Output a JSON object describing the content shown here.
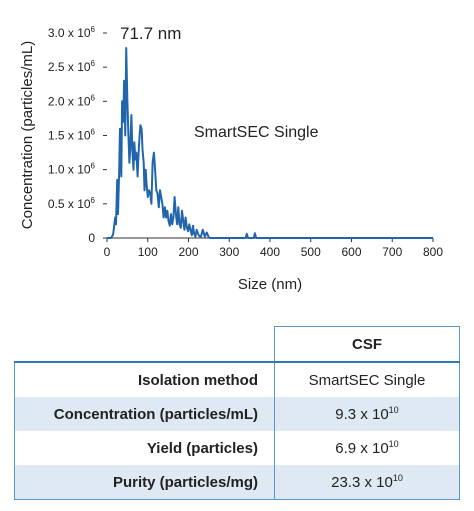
{
  "chart_data": {
    "type": "line",
    "annotation_peak": "71.7 nm",
    "annotation_series": "SmartSEC Single",
    "xlabel": "Size (nm)",
    "ylabel": "Concentration (particles/mL)",
    "xlim": [
      0,
      800
    ],
    "ylim": [
      0,
      3000000
    ],
    "xticks": [
      "0",
      "100",
      "200",
      "300",
      "400",
      "500",
      "600",
      "700",
      "800"
    ],
    "yticks": [
      {
        "value": 0,
        "base": "0",
        "exp": ""
      },
      {
        "value": 500000,
        "base": "0.5 x 10",
        "exp": "6"
      },
      {
        "value": 1000000,
        "base": "1.0 x 10",
        "exp": "6"
      },
      {
        "value": 1500000,
        "base": "1.5 x 10",
        "exp": "6"
      },
      {
        "value": 2000000,
        "base": "2.0 x 10",
        "exp": "6"
      },
      {
        "value": 2500000,
        "base": "2.5 x 10",
        "exp": "6"
      },
      {
        "value": 3000000,
        "base": "3.0 x 10",
        "exp": "6"
      }
    ],
    "line_color": "#2166ac",
    "grid": false,
    "x": [
      0,
      10,
      15,
      20,
      22,
      25,
      27,
      30,
      32,
      35,
      37,
      40,
      42,
      45,
      47,
      50,
      52,
      55,
      57,
      60,
      62,
      65,
      67,
      70,
      72,
      75,
      77,
      80,
      82,
      85,
      87,
      90,
      92,
      95,
      97,
      100,
      103,
      106,
      109,
      112,
      115,
      118,
      121,
      124,
      127,
      130,
      133,
      136,
      139,
      142,
      145,
      148,
      151,
      154,
      157,
      160,
      163,
      166,
      169,
      172,
      175,
      178,
      181,
      184,
      187,
      190,
      193,
      196,
      199,
      202,
      205,
      208,
      211,
      214,
      217,
      220,
      225,
      230,
      235,
      240,
      245,
      250,
      255,
      260,
      300,
      340,
      343,
      346,
      350,
      360,
      363,
      366,
      370,
      380,
      400,
      500,
      600,
      700,
      800
    ],
    "y": [
      0,
      0,
      50000,
      300000,
      200000,
      850000,
      350000,
      1000000,
      1600000,
      900000,
      2000000,
      1700000,
      2300000,
      1500000,
      2780000,
      2000000,
      1600000,
      1100000,
      1300000,
      1800000,
      1300000,
      1000000,
      1400000,
      1150000,
      1250000,
      900000,
      1200000,
      1500000,
      1650000,
      1600000,
      1300000,
      1100000,
      700000,
      1000000,
      800000,
      600000,
      700000,
      650000,
      500000,
      1100000,
      1250000,
      1000000,
      700000,
      650000,
      450000,
      700000,
      600000,
      500000,
      300000,
      450000,
      300000,
      400000,
      250000,
      180000,
      350000,
      200000,
      300000,
      600000,
      350000,
      200000,
      450000,
      200000,
      150000,
      400000,
      250000,
      120000,
      300000,
      150000,
      100000,
      200000,
      120000,
      40000,
      180000,
      60000,
      20000,
      120000,
      40000,
      10000,
      120000,
      20000,
      80000,
      5000,
      0,
      0,
      0,
      0,
      60000,
      0,
      0,
      0,
      70000,
      0,
      0,
      0,
      0,
      0,
      0,
      0,
      0
    ]
  },
  "table": {
    "header": "CSF",
    "rows": [
      {
        "label": "Isolation method",
        "value": "SmartSEC Single",
        "exp": ""
      },
      {
        "label": "Concentration (particles/mL)",
        "value": "9.3 x 10",
        "exp": "10"
      },
      {
        "label": "Yield (particles)",
        "value": "6.9 x 10",
        "exp": "10"
      },
      {
        "label": "Purity (particles/mg)",
        "value": "23.3 x 10",
        "exp": "10"
      }
    ]
  }
}
